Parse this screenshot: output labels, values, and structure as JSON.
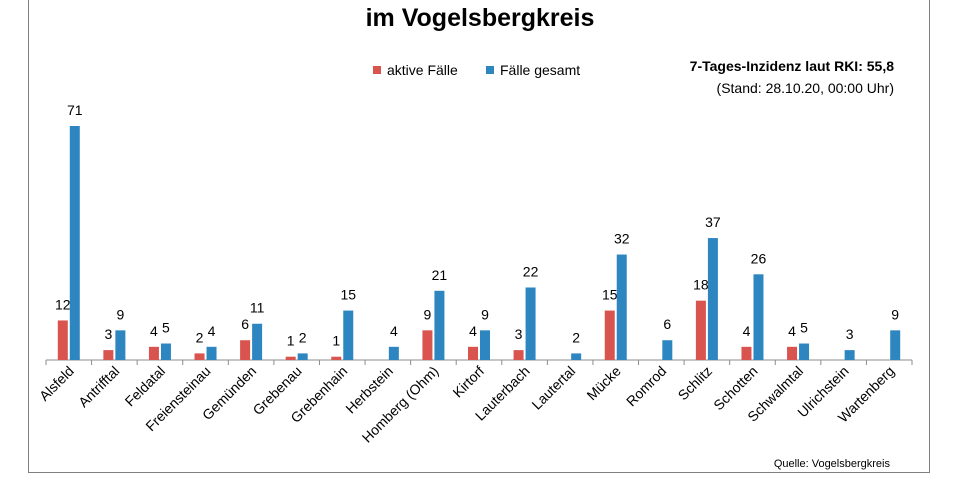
{
  "chart_data": {
    "type": "bar",
    "title": "im Vogelsbergkreis",
    "categories": [
      "Alsfeld",
      "Antrifftal",
      "Feldatal",
      "Freiensteinau",
      "Gemünden",
      "Grebenau",
      "Grebenhain",
      "Herbstein",
      "Homberg (Ohm)",
      "Kirtorf",
      "Lauterbach",
      "Lautertal",
      "Mücke",
      "Romrod",
      "Schlitz",
      "Schotten",
      "Schwalmtal",
      "Ulrichstein",
      "Wartenberg"
    ],
    "series": [
      {
        "name": "aktive Fälle",
        "color": "#d9534f",
        "values": [
          12,
          3,
          4,
          2,
          6,
          1,
          1,
          null,
          9,
          4,
          3,
          null,
          15,
          null,
          18,
          4,
          4,
          null,
          null
        ]
      },
      {
        "name": "Fälle gesamt",
        "color": "#2e86c1",
        "values": [
          71,
          9,
          5,
          4,
          11,
          2,
          15,
          4,
          21,
          9,
          22,
          2,
          32,
          6,
          37,
          26,
          5,
          3,
          9
        ]
      }
    ],
    "ylim": [
      0,
      75
    ],
    "grid": false,
    "legend": "top-center"
  },
  "annotations": {
    "incidence": "7-Tages-Inzidenz laut RKI: 55,8",
    "stand": "(Stand: 28.10.20, 00:00 Uhr)",
    "source": "Quelle: Vogelsbergkreis"
  }
}
